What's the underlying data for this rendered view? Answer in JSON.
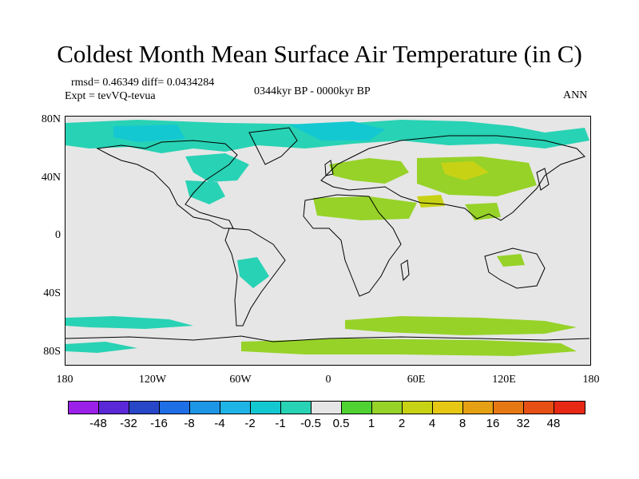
{
  "title": "Coldest Month Mean Surface Air Temperature (in C)",
  "stats": "rmsd= 0.46349 diff= 0.0434284",
  "experiment": "Expt = tevVQ-tevua",
  "period": "0344kyr BP - 0000kyr BP",
  "season": "ANN",
  "map": {
    "projection": "cylindrical-equidistant",
    "lon_range": [
      -180,
      180
    ],
    "lat_range": [
      -90,
      90
    ],
    "background_color": "#e6e6e6",
    "coastline_color": "#000000",
    "y_ticks": [
      {
        "lat": 80,
        "label": "80N"
      },
      {
        "lat": 40,
        "label": "40N"
      },
      {
        "lat": 0,
        "label": "0"
      },
      {
        "lat": -40,
        "label": "40S"
      },
      {
        "lat": -80,
        "label": "80S"
      }
    ],
    "x_ticks": [
      {
        "lon": -180,
        "label": "180"
      },
      {
        "lon": -120,
        "label": "120W"
      },
      {
        "lon": -60,
        "label": "60W"
      },
      {
        "lon": 0,
        "label": "0"
      },
      {
        "lon": 60,
        "label": "60E"
      },
      {
        "lon": 120,
        "label": "120E"
      },
      {
        "lon": 180,
        "label": "180"
      }
    ]
  },
  "colorbar": {
    "colors": [
      "#9b20e8",
      "#5a28d6",
      "#2846c8",
      "#1e6ee6",
      "#1e96e6",
      "#1eb4e6",
      "#14c8d2",
      "#28d2b4",
      "#e6e6e6",
      "#50d232",
      "#96d228",
      "#c8d214",
      "#e6c814",
      "#e6a014",
      "#e67814",
      "#e65014",
      "#e62814"
    ],
    "labels": [
      "-48",
      "-32",
      "-16",
      "-8",
      "-4",
      "-2",
      "-1",
      "-0.5",
      "0.5",
      "1",
      "2",
      "4",
      "8",
      "16",
      "32",
      "48"
    ]
  }
}
